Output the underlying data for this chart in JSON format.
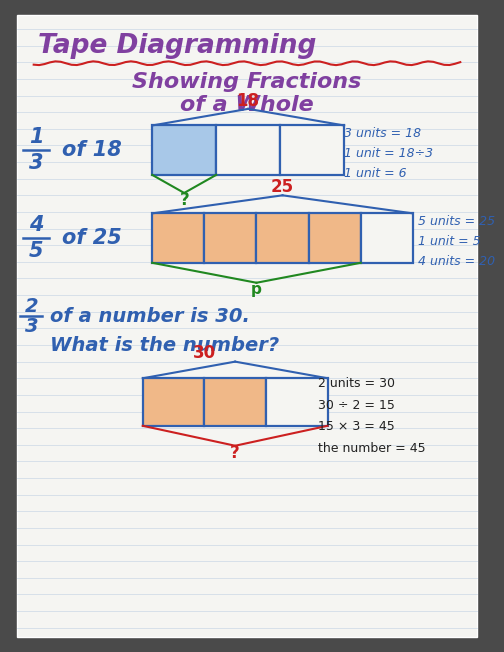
{
  "bg_outer": "#4a4a4a",
  "bg_paper": "#f5f5f2",
  "title1": "Tape Diagramming",
  "title2": "Showing Fractions",
  "title3": "of a Whole",
  "title_color": "#8040a0",
  "underline_color": "#dd4444",
  "blue": "#3060b0",
  "red": "#cc2020",
  "green": "#208820",
  "orange_fill": "#f0b888",
  "blue_fill": "#a8c8e8",
  "notes_color": "#3060b0",
  "dark_color": "#222222",
  "section1_notes": [
    "3 units = 18",
    "1 unit = 18÷3",
    "1 unit = 6"
  ],
  "section2_notes": [
    "5 units = 25",
    "1 unit = 5",
    "4 units = 20"
  ],
  "section3_notes": [
    "2 units = 30",
    "30 ÷ 2 = 15",
    "15 × 3 = 45",
    "the number = 45"
  ]
}
